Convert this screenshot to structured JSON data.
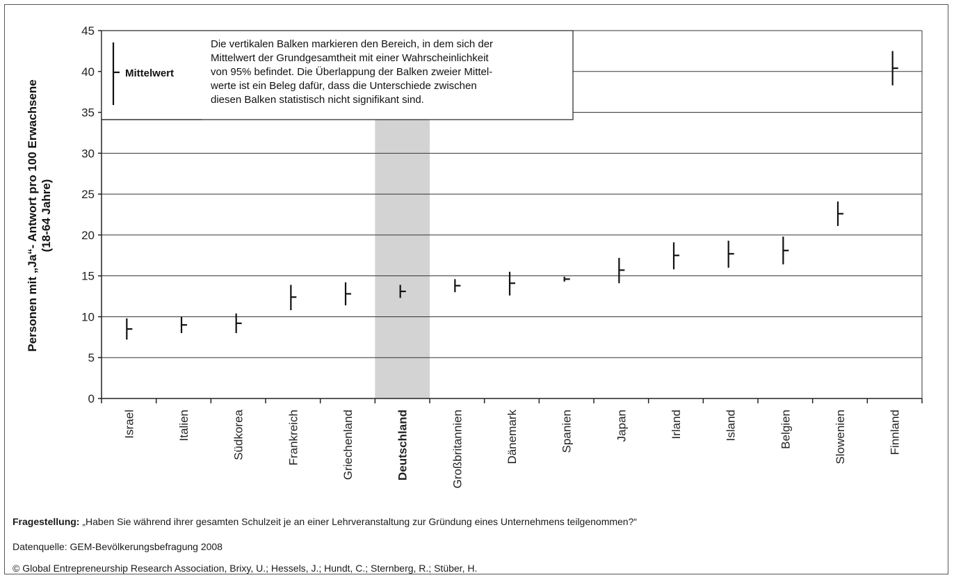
{
  "chart_data": {
    "type": "error-bar",
    "ylabel": "Personen mit „Ja“- Antwort pro 100 Erwachsene",
    "ylabel2": "(18-64 Jahre)",
    "ylim": [
      0,
      45
    ],
    "yticks": [
      0,
      5,
      10,
      15,
      20,
      25,
      30,
      35,
      40,
      45
    ],
    "grid": true,
    "highlight_category": "Deutschland",
    "categories": [
      "Israel",
      "Italien",
      "Südkorea",
      "Frankreich",
      "Griechenland",
      "Deutschland",
      "Großbritannien",
      "Dänemark",
      "Spanien",
      "Japan",
      "Irland",
      "Island",
      "Belgien",
      "Slowenien",
      "Finnland"
    ],
    "mean": [
      8.5,
      9.0,
      9.2,
      12.4,
      12.8,
      13.1,
      13.8,
      14.1,
      14.6,
      15.7,
      17.5,
      17.7,
      18.1,
      22.6,
      40.4
    ],
    "lower": [
      7.2,
      8.0,
      8.0,
      10.8,
      11.4,
      12.3,
      13.0,
      12.6,
      14.3,
      14.1,
      15.8,
      16.0,
      16.4,
      21.1,
      38.3
    ],
    "upper": [
      9.8,
      10.0,
      10.4,
      13.9,
      14.2,
      13.9,
      14.6,
      15.5,
      14.9,
      17.2,
      19.1,
      19.3,
      19.8,
      24.1,
      42.5
    ],
    "legend": {
      "label": "Mittelwert",
      "text": [
        "Die vertikalen Balken markieren den Bereich, in dem sich der",
        "Mittelwert der Grundgesamtheit mit einer Wahrscheinlichkeit",
        "von 95% befindet. Die Überlappung der Balken zweier Mittel-",
        "werte ist ein Beleg dafür, dass die Unterschiede zwischen",
        "diesen Balken statistisch nicht signifikant sind."
      ]
    }
  },
  "footer": {
    "question_label": "Fragestellung:",
    "question_text": " „Haben Sie während ihrer gesamten Schulzeit je an einer Lehrveranstaltung zur Gründung eines Unternehmens teilgenommen?“",
    "source": "Datenquelle: GEM-Bevölkerungsbefragung 2008",
    "copyright": "©  Global Entrepreneurship Research Association, Brixy, U.; Hessels, J.; Hundt, C.; Sternberg, R.; Stüber, H."
  }
}
